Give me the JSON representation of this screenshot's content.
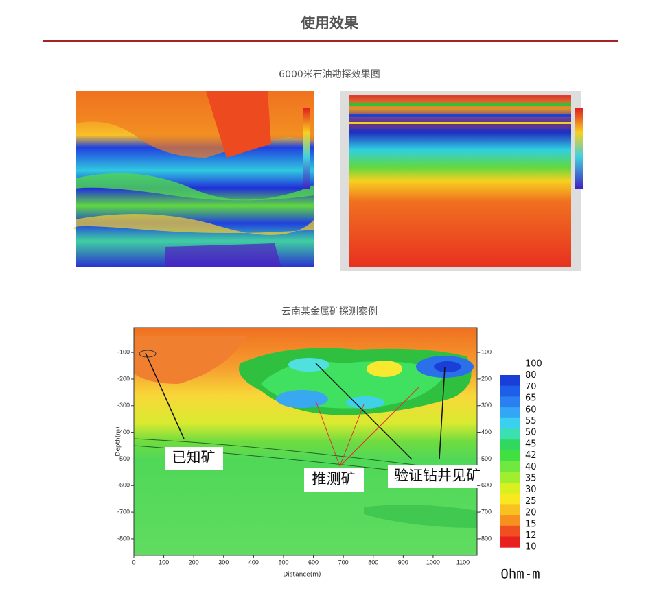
{
  "header": {
    "title": "使用效果"
  },
  "figure1": {
    "caption": "6000米石油勘探效果图"
  },
  "figure2": {
    "caption": "云南某金属矿探测案例",
    "xlabel": "Distance(m)",
    "ylabel": "Depth(m)",
    "xlim": [
      0,
      1147
    ],
    "ylim": [
      -862,
      -7
    ],
    "xticks": [
      0,
      100,
      200,
      300,
      400,
      500,
      600,
      700,
      800,
      900,
      1000,
      1100
    ],
    "yticks": [
      -100,
      -200,
      -300,
      -400,
      -500,
      -600,
      -700,
      -800
    ],
    "colorbar": {
      "ticks": [
        100,
        80,
        70,
        65,
        60,
        55,
        50,
        45,
        42,
        40,
        35,
        30,
        25,
        20,
        15,
        12,
        10
      ],
      "colors": [
        "#1a3fd8",
        "#1f5ee8",
        "#2a80f0",
        "#33a6f5",
        "#3cd0f0",
        "#3ce0b0",
        "#30d860",
        "#40e040",
        "#70e840",
        "#a0ee30",
        "#d8f020",
        "#f8e820",
        "#f8c020",
        "#f89020",
        "#f05020",
        "#e82020"
      ],
      "unit": "Ohm-m"
    },
    "annotations": [
      "已知矿",
      "推测矿",
      "验证钻井见矿"
    ]
  }
}
